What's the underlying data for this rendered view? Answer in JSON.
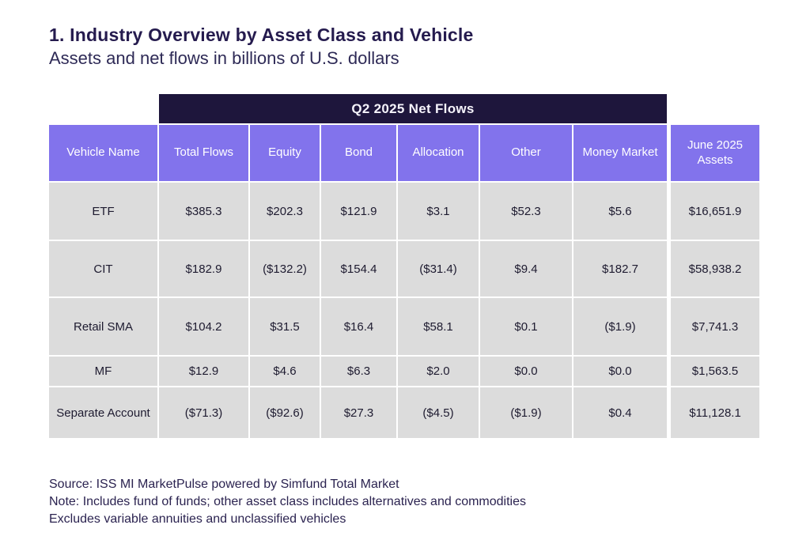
{
  "page": {
    "title": "1. Industry Overview by Asset Class and Vehicle",
    "subtitle": "Assets and net flows in billions of U.S. dollars"
  },
  "table": {
    "band_title": "Q2 2025 Net Flows",
    "columns": [
      "Vehicle Name",
      "Total Flows",
      "Equity",
      "Bond",
      "Allocation",
      "Other",
      "Money Market",
      "June 2025 Assets"
    ],
    "rows": [
      {
        "vehicle": "ETF",
        "values": [
          "$385.3",
          "$202.3",
          "$121.9",
          "$3.1",
          "$52.3",
          "$5.6",
          "$16,651.9"
        ]
      },
      {
        "vehicle": "CIT",
        "values": [
          "$182.9",
          "($132.2)",
          "$154.4",
          "($31.4)",
          "$9.4",
          "$182.7",
          "$58,938.2"
        ]
      },
      {
        "vehicle": "Retail SMA",
        "values": [
          "$104.2",
          "$31.5",
          "$16.4",
          "$58.1",
          "$0.1",
          "($1.9)",
          "$7,741.3"
        ]
      },
      {
        "vehicle": "MF",
        "values": [
          "$12.9",
          "$4.6",
          "$6.3",
          "$2.0",
          "$0.0",
          "$0.0",
          "$1,563.5"
        ]
      },
      {
        "vehicle": "Separate Account",
        "values": [
          "($71.3)",
          "($92.6)",
          "$27.3",
          "($4.5)",
          "($1.9)",
          "$0.4",
          "$11,128.1"
        ]
      }
    ]
  },
  "footer": {
    "source": "Source: ISS MI MarketPulse powered by Simfund Total Market",
    "note1": "Note: Includes fund of funds; other asset class includes alternatives and commodities",
    "note2": "Excludes variable annuities and unclassified vehicles"
  },
  "colors": {
    "band_bg": "#1e163c",
    "header_bg": "#8273ec",
    "cell_bg": "#dcdcdc",
    "title_text": "#251b4e",
    "body_text": "#1e1b30",
    "footer_text": "#2b2350"
  },
  "chart_data": {
    "type": "table",
    "title": "1. Industry Overview by Asset Class and Vehicle",
    "subtitle": "Assets and net flows in billions of U.S. dollars",
    "units": "billions of U.S. dollars",
    "group_header": "Q2 2025 Net Flows",
    "group_header_spans_columns": [
      "Total Flows",
      "Equity",
      "Bond",
      "Allocation",
      "Other",
      "Money Market"
    ],
    "columns": [
      "Vehicle Name",
      "Total Flows",
      "Equity",
      "Bond",
      "Allocation",
      "Other",
      "Money Market",
      "June 2025 Assets"
    ],
    "rows": [
      [
        "ETF",
        385.3,
        202.3,
        121.9,
        3.1,
        52.3,
        5.6,
        16651.9
      ],
      [
        "CIT",
        182.9,
        -132.2,
        154.4,
        -31.4,
        9.4,
        182.7,
        58938.2
      ],
      [
        "Retail SMA",
        104.2,
        31.5,
        16.4,
        58.1,
        0.1,
        -1.9,
        7741.3
      ],
      [
        "MF",
        12.9,
        4.6,
        6.3,
        2.0,
        0.0,
        0.0,
        1563.5
      ],
      [
        "Separate Account",
        -71.3,
        -92.6,
        27.3,
        -4.5,
        -1.9,
        0.4,
        11128.1
      ]
    ],
    "negative_format": "parentheses"
  }
}
